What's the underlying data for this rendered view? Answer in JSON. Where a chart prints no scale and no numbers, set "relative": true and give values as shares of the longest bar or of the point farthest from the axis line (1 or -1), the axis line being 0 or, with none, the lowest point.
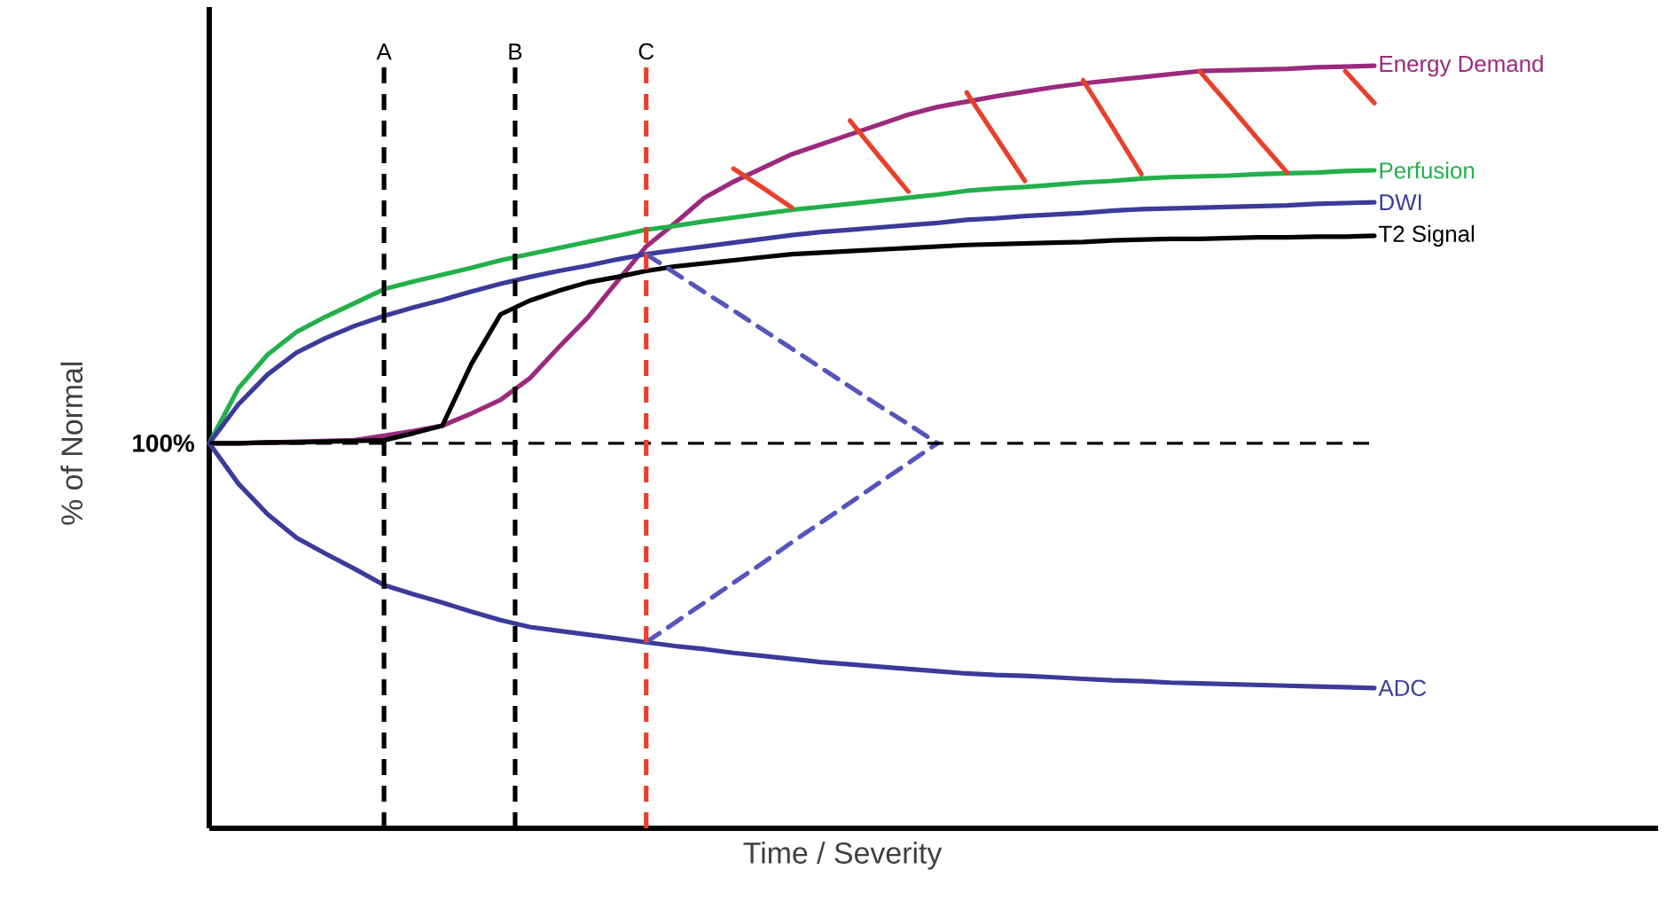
{
  "chart_data": {
    "type": "line",
    "relative": true,
    "xlabel": "Time / Severity",
    "ylabel": "% of Normal",
    "marker": "none",
    "line_style": "solid",
    "categories": [
      null,
      null,
      null,
      null,
      null,
      null,
      null,
      null,
      null,
      null,
      null,
      null,
      null,
      null,
      null,
      null,
      null,
      null,
      null,
      null,
      null,
      null,
      null,
      null,
      null,
      null,
      null,
      null,
      null,
      null,
      null,
      null,
      null,
      null,
      null,
      null,
      null,
      null,
      null,
      null,
      null
    ],
    "series": [
      {
        "name": "Energy Demand",
        "color": "#9b2a7f",
        "values": [
          0.505,
          0.505,
          0.506,
          0.507,
          0.508,
          0.509,
          0.515,
          0.521,
          0.528,
          0.544,
          0.562,
          0.59,
          0.631,
          0.67,
          0.717,
          0.763,
          0.794,
          0.827,
          0.848,
          0.866,
          0.884,
          0.897,
          0.91,
          0.923,
          0.936,
          0.946,
          0.953,
          0.96,
          0.966,
          0.972,
          0.977,
          0.981,
          0.985,
          0.989,
          0.993,
          0.994,
          0.995,
          0.996,
          0.998,
          0.999,
          1.0
        ]
      },
      {
        "name": "Perfusion",
        "color": "#22b04b",
        "values": [
          0.505,
          0.577,
          0.621,
          0.651,
          0.671,
          0.689,
          0.707,
          0.717,
          0.726,
          0.735,
          0.745,
          0.753,
          0.761,
          0.769,
          0.777,
          0.785,
          0.79,
          0.796,
          0.801,
          0.806,
          0.811,
          0.815,
          0.819,
          0.823,
          0.827,
          0.831,
          0.836,
          0.839,
          0.841,
          0.844,
          0.847,
          0.849,
          0.852,
          0.854,
          0.855,
          0.856,
          0.858,
          0.859,
          0.86,
          0.862,
          0.863
        ]
      },
      {
        "name": "DWI",
        "color": "#3b3b9b",
        "values": [
          0.505,
          0.556,
          0.595,
          0.624,
          0.643,
          0.659,
          0.672,
          0.683,
          0.693,
          0.704,
          0.714,
          0.723,
          0.731,
          0.738,
          0.746,
          0.753,
          0.758,
          0.763,
          0.768,
          0.773,
          0.778,
          0.782,
          0.785,
          0.788,
          0.791,
          0.794,
          0.798,
          0.8,
          0.803,
          0.805,
          0.807,
          0.81,
          0.812,
          0.813,
          0.814,
          0.815,
          0.816,
          0.817,
          0.819,
          0.82,
          0.821
        ]
      },
      {
        "name": "T2 Signal",
        "color": "#000000",
        "values": [
          0.505,
          0.505,
          0.506,
          0.506,
          0.507,
          0.508,
          0.509,
          0.518,
          0.528,
          0.609,
          0.674,
          0.692,
          0.705,
          0.716,
          0.723,
          0.731,
          0.737,
          0.741,
          0.745,
          0.749,
          0.753,
          0.755,
          0.757,
          0.759,
          0.761,
          0.763,
          0.765,
          0.766,
          0.767,
          0.768,
          0.769,
          0.771,
          0.772,
          0.773,
          0.773,
          0.774,
          0.775,
          0.775,
          0.776,
          0.776,
          0.777
        ]
      },
      {
        "name": "ADC",
        "color": "#3b3b9b",
        "values": [
          0.505,
          0.452,
          0.412,
          0.381,
          0.36,
          0.34,
          0.319,
          0.307,
          0.296,
          0.284,
          0.273,
          0.264,
          0.259,
          0.254,
          0.249,
          0.244,
          0.239,
          0.235,
          0.23,
          0.226,
          0.222,
          0.218,
          0.215,
          0.212,
          0.209,
          0.206,
          0.203,
          0.201,
          0.2,
          0.198,
          0.196,
          0.194,
          0.193,
          0.191,
          0.19,
          0.189,
          0.188,
          0.187,
          0.186,
          0.185,
          0.184
        ]
      },
      {
        "color": "#5555bb",
        "line_style": "dashed",
        "values": [
          null,
          null,
          null,
          null,
          null,
          null,
          null,
          null,
          null,
          null,
          null,
          null,
          null,
          null,
          null,
          0.753,
          0.728,
          0.703,
          0.679,
          0.654,
          0.629,
          0.604,
          0.579,
          0.554,
          0.53,
          0.505,
          null,
          null,
          null,
          null,
          null,
          null,
          null,
          null,
          null,
          null,
          null,
          null,
          null,
          null,
          null
        ]
      },
      {
        "color": "#5555bb",
        "line_style": "dashed",
        "values": [
          null,
          null,
          null,
          null,
          null,
          null,
          null,
          null,
          null,
          null,
          null,
          null,
          null,
          null,
          null,
          0.244,
          0.27,
          0.296,
          0.322,
          0.348,
          0.375,
          0.401,
          0.427,
          0.453,
          0.479,
          0.505,
          null,
          null,
          null,
          null,
          null,
          null,
          null,
          null,
          null,
          null,
          null,
          null,
          null,
          null,
          null
        ]
      },
      {
        "color": "#e8412b",
        "values": [
          null,
          null,
          null,
          null,
          null,
          null,
          null,
          null,
          null,
          null,
          null,
          null,
          null,
          null,
          null,
          null,
          null,
          null,
          0.865,
          0.84,
          0.814,
          null,
          0.928,
          0.881,
          0.835,
          null,
          0.965,
          0.907,
          0.849,
          null,
          0.981,
          0.92,
          0.858,
          null,
          0.993,
          0.949,
          0.904,
          0.86,
          null,
          0.993,
          0.951
        ]
      }
    ],
    "ref_lines": [
      {
        "axis": "y",
        "value": 0.505,
        "color": "#000000",
        "line_style": "dashed"
      }
    ],
    "annotations": [
      "A",
      "B",
      "C",
      "100%"
    ]
  }
}
